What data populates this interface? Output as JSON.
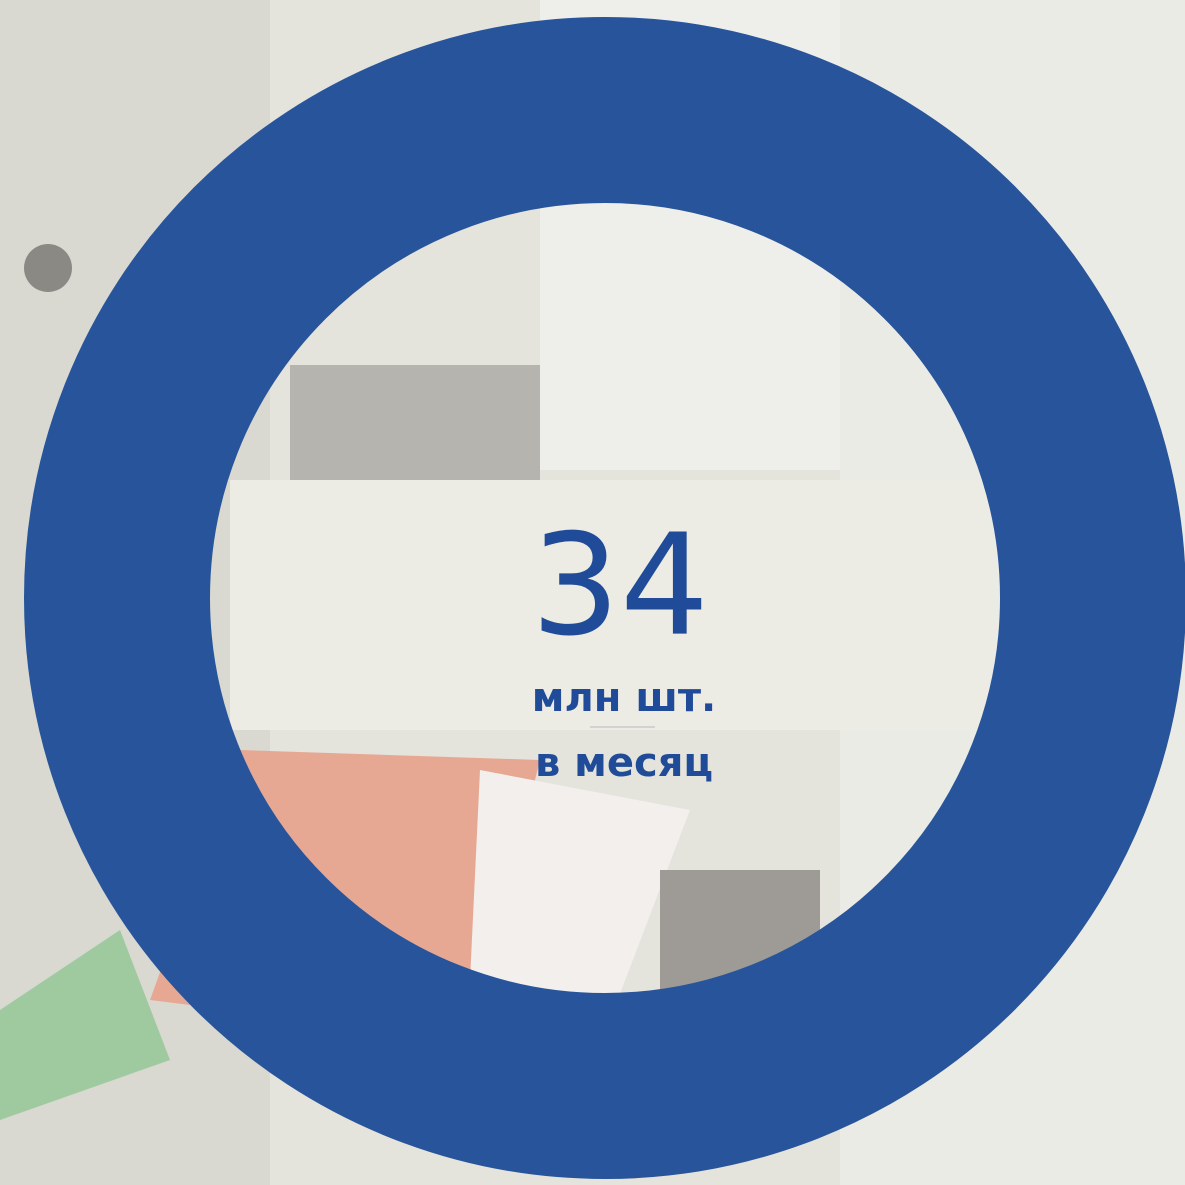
{
  "headline": {
    "value": 34,
    "unit": "млн шт.",
    "period": "в месяц"
  }
}
